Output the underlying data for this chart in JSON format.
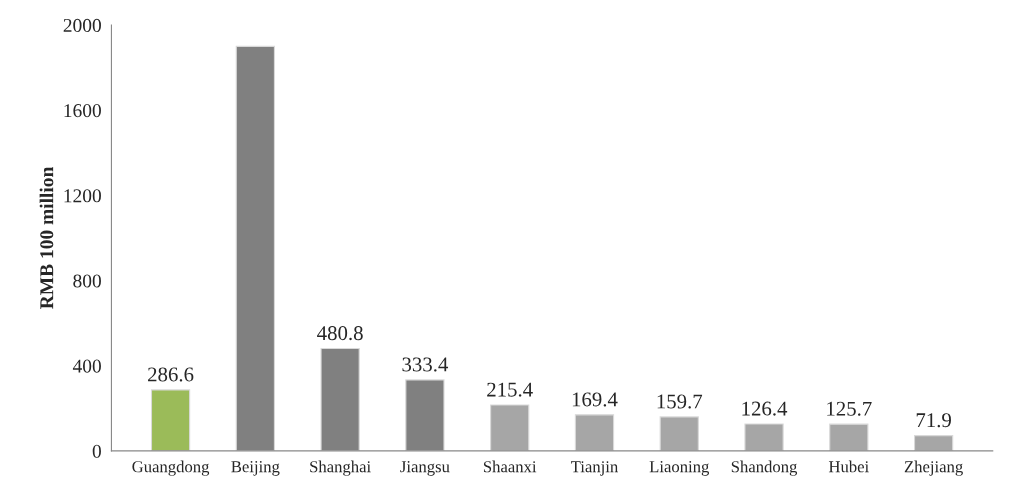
{
  "chart_data": {
    "type": "bar",
    "ylabel": "RMB 100 million",
    "categories": [
      "Guangdong",
      "Beijing",
      "Shanghai",
      "Jiangsu",
      "Shaanxi",
      "Tianjin",
      "Liaoning",
      "Shandong",
      "Hubei",
      "Zhejiang"
    ],
    "values": [
      286.6,
      1900,
      480.8,
      333.4,
      215.4,
      169.4,
      159.7,
      126.4,
      125.7,
      71.9
    ],
    "colors": [
      "#9bbb59",
      "#808080",
      "#808080",
      "#808080",
      "#a6a6a6",
      "#a6a6a6",
      "#a6a6a6",
      "#a6a6a6",
      "#a6a6a6",
      "#a6a6a6"
    ],
    "value_labels": [
      "286.6",
      null,
      "480.8",
      "333.4",
      "215.4",
      "169.4",
      "159.7",
      "126.4",
      "125.7",
      "71.9"
    ],
    "ylim": [
      0,
      2000
    ],
    "yticks": [
      0,
      400,
      800,
      1200,
      1600,
      2000
    ],
    "grid": false
  }
}
